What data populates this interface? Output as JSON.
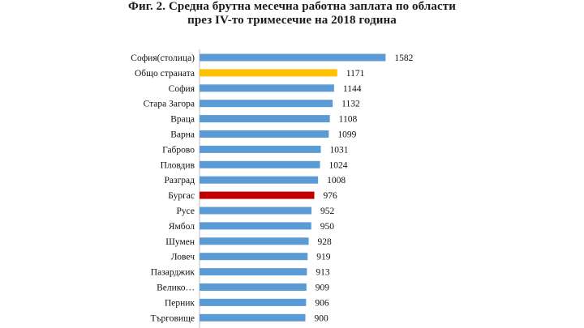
{
  "figure": {
    "title_line1": "Фиг. 2. Средна брутна месечна работна заплата по области",
    "title_line2": "през IV-то тримесечие на 2018 година"
  },
  "colors": {
    "default_bar": "#5b9bd5",
    "highlight_total": "#ffc000",
    "highlight_burgas": "#c00000"
  },
  "chart_data": {
    "type": "bar",
    "orientation": "horizontal",
    "title": "Фиг. 2. Средна брутна месечна работна заплата по области през IV-то тримесечие на 2018 година",
    "xlabel": "",
    "ylabel": "",
    "grid": false,
    "legend": "none",
    "xlim": [
      0,
      1700
    ],
    "categories": [
      "София(столица)",
      "Общо страната",
      "София",
      "Стара Загора",
      "Враца",
      "Варна",
      "Габрово",
      "Пловдив",
      "Разград",
      "Бургас",
      "Русе",
      "Ямбол",
      "Шумен",
      "Ловеч",
      "Пазарджик",
      "Велико…",
      "Перник",
      "Търговище"
    ],
    "values": [
      1582,
      1171,
      1144,
      1132,
      1108,
      1099,
      1031,
      1024,
      1008,
      976,
      952,
      950,
      928,
      919,
      913,
      909,
      906,
      900
    ],
    "bar_colors": [
      "#5b9bd5",
      "#ffc000",
      "#5b9bd5",
      "#5b9bd5",
      "#5b9bd5",
      "#5b9bd5",
      "#5b9bd5",
      "#5b9bd5",
      "#5b9bd5",
      "#c00000",
      "#5b9bd5",
      "#5b9bd5",
      "#5b9bd5",
      "#5b9bd5",
      "#5b9bd5",
      "#5b9bd5",
      "#5b9bd5",
      "#5b9bd5"
    ]
  }
}
